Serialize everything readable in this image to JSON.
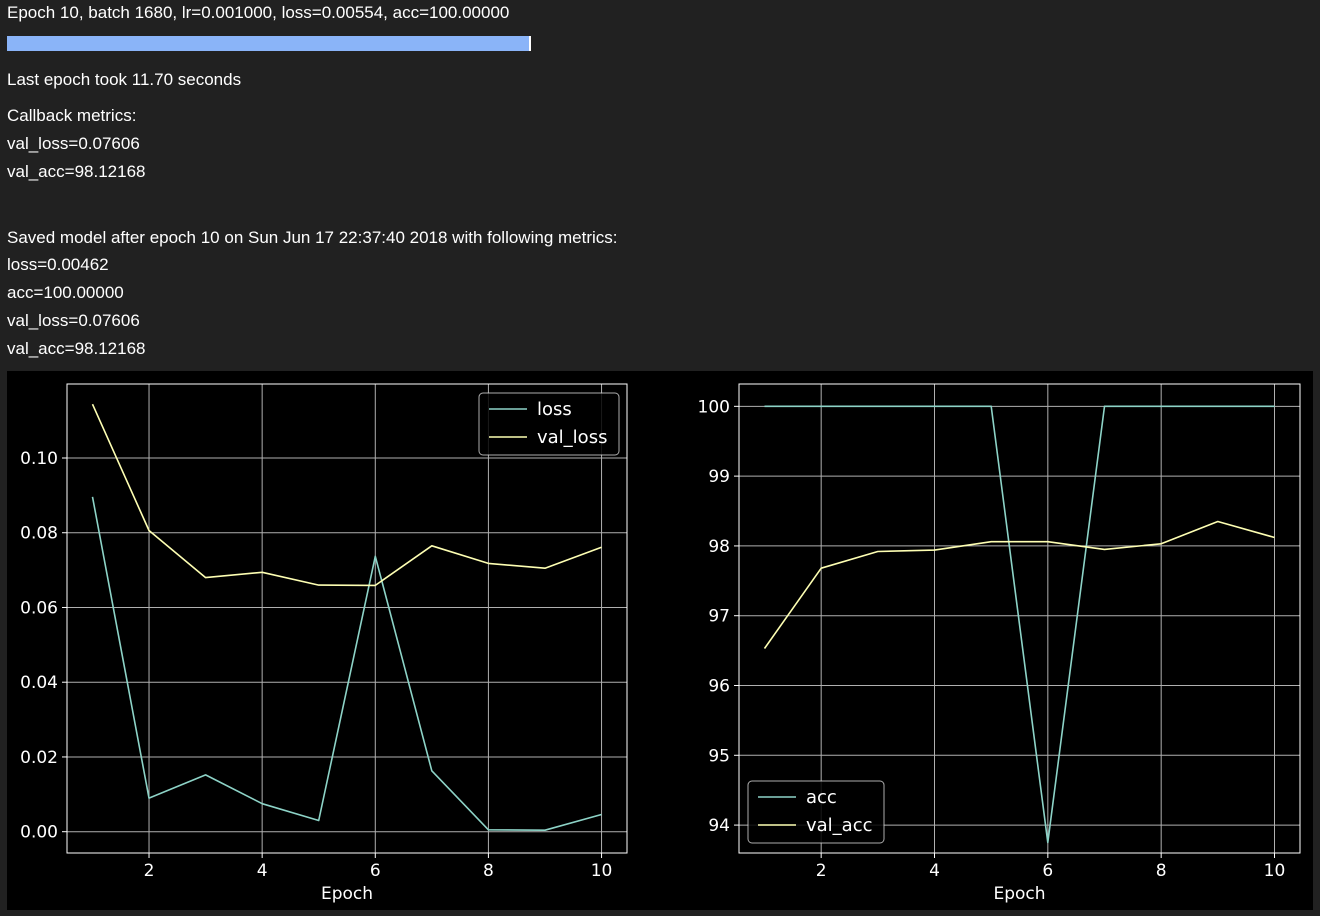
{
  "log": {
    "status_line": "Epoch 10, batch 1680, lr=0.001000, loss=0.00554, acc=100.00000",
    "progress_fraction": 1.0,
    "epoch_time": "Last epoch took 11.70 seconds",
    "callback_header": "Callback metrics:",
    "callback_val_loss": "val_loss=0.07606",
    "callback_val_acc": "val_acc=98.12168",
    "saved_line": "Saved model after epoch 10 on Sun Jun 17 22:37:40 2018 with following metrics:",
    "saved_loss": "loss=0.00462",
    "saved_acc": "acc=100.00000",
    "saved_val_loss": "val_loss=0.07606",
    "saved_val_acc": "val_acc=98.12168"
  },
  "colors": {
    "series_a": "#8dd3c7",
    "series_b": "#feffb3",
    "grid": "#b0b0b0",
    "background": "#000000"
  },
  "chart_data": [
    {
      "type": "line",
      "xlabel": "Epoch",
      "ylabel": "",
      "x": [
        1,
        2,
        3,
        4,
        5,
        6,
        7,
        8,
        9,
        10
      ],
      "xlim": [
        0.55,
        10.45
      ],
      "ylim": [
        -0.0057,
        0.1198
      ],
      "xticks": [
        2,
        4,
        6,
        8,
        10
      ],
      "xtick_labels": [
        "2",
        "4",
        "6",
        "8",
        "10"
      ],
      "yticks": [
        0.0,
        0.02,
        0.04,
        0.06,
        0.08,
        0.1
      ],
      "ytick_labels": [
        "0.00",
        "0.02",
        "0.04",
        "0.06",
        "0.08",
        "0.10"
      ],
      "grid": true,
      "legend_position": "upper right",
      "series": [
        {
          "name": "loss",
          "values": [
            0.0896,
            0.009,
            0.0152,
            0.0075,
            0.003,
            0.0737,
            0.0163,
            0.0005,
            0.0004,
            0.0046
          ]
        },
        {
          "name": "val_loss",
          "values": [
            0.1144,
            0.0806,
            0.068,
            0.0694,
            0.066,
            0.0659,
            0.0765,
            0.0718,
            0.0705,
            0.0761
          ]
        }
      ]
    },
    {
      "type": "line",
      "xlabel": "Epoch",
      "ylabel": "",
      "x": [
        1,
        2,
        3,
        4,
        5,
        6,
        7,
        8,
        9,
        10
      ],
      "xlim": [
        0.55,
        10.45
      ],
      "ylim": [
        93.6,
        100.32
      ],
      "xticks": [
        2,
        4,
        6,
        8,
        10
      ],
      "xtick_labels": [
        "2",
        "4",
        "6",
        "8",
        "10"
      ],
      "yticks": [
        94,
        95,
        96,
        97,
        98,
        99,
        100
      ],
      "ytick_labels": [
        "94",
        "95",
        "96",
        "97",
        "98",
        "99",
        "100"
      ],
      "grid": true,
      "legend_position": "lower left",
      "series": [
        {
          "name": "acc",
          "values": [
            100.0,
            100.0,
            100.0,
            100.0,
            100.0,
            93.75,
            100.0,
            100.0,
            100.0,
            100.0
          ]
        },
        {
          "name": "val_acc",
          "values": [
            96.53,
            97.68,
            97.92,
            97.94,
            98.06,
            98.06,
            97.95,
            98.03,
            98.35,
            98.12
          ]
        }
      ]
    }
  ]
}
